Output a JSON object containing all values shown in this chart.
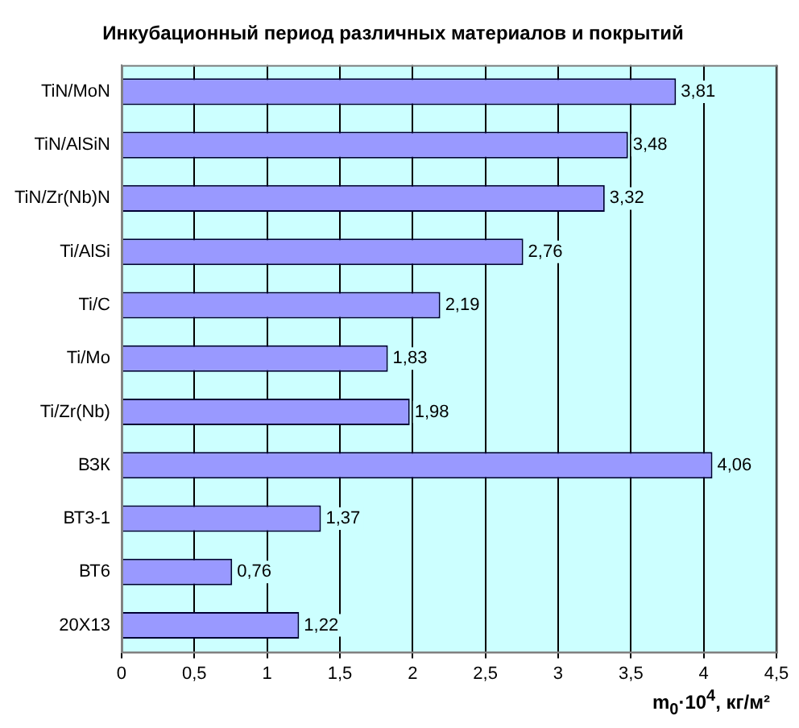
{
  "chart_data": {
    "type": "bar",
    "orientation": "horizontal",
    "title": "Инкубационный период различных материалов и покрытий",
    "xlabel": "m$_{0}$·10$^{4}$,  кг/м²",
    "categories": [
      "TiN/MoN",
      "TiN/AlSiN",
      "TiN/Zr(Nb)N",
      "Ti/AlSi",
      "Ti/C",
      "Ti/Mo",
      "Ti/Zr(Nb)",
      "ВЗК",
      "ВТ3-1",
      "ВТ6",
      "20Х13"
    ],
    "values": [
      3.81,
      3.48,
      3.32,
      2.76,
      2.19,
      1.83,
      1.98,
      4.06,
      1.37,
      0.76,
      1.22
    ],
    "value_labels": [
      "3,81",
      "3,48",
      "3,32",
      "2,76",
      "2,19",
      "1,83",
      "1,98",
      "4,06",
      "1,37",
      "0,76",
      "1,22"
    ],
    "color": "#9999ff",
    "xlim": [
      0,
      4.5
    ],
    "xticks": [
      0,
      {
        "value": 0.5,
        "label": "0,5"
      },
      1,
      {
        "value": 1.5,
        "label": "1,5"
      },
      2,
      {
        "value": 2.5,
        "label": "2,5"
      },
      3,
      {
        "value": 3.5,
        "label": "3,5"
      },
      4,
      {
        "value": 4.5,
        "label": "4,5"
      }
    ],
    "grid": "x",
    "legend": false
  }
}
